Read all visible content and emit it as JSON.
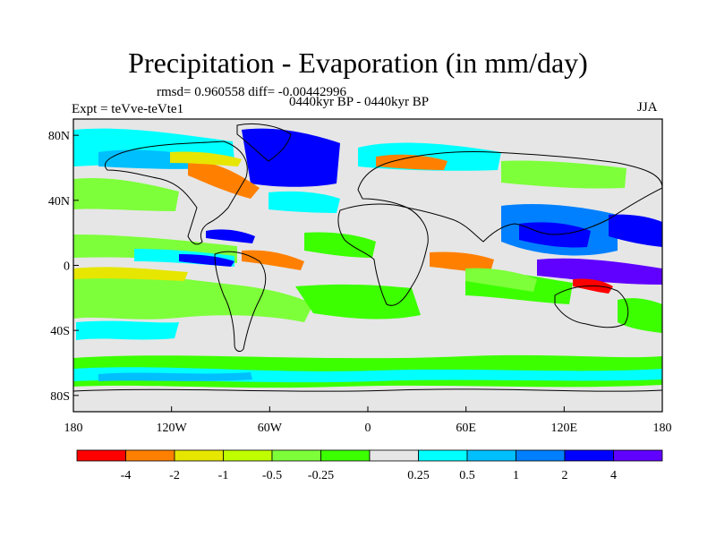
{
  "title": "Precipitation - Evaporation (in mm/day)",
  "stats": "rmsd= 0.960558 diff= -0.00442996",
  "period": "0440kyr BP - 0440kyr BP",
  "experiment": "Expt = teVve-teVte1",
  "season": "JJA",
  "map": {
    "lat_ticks": [
      "80N",
      "40N",
      "0",
      "40S",
      "80S"
    ],
    "lat_values": [
      80,
      40,
      0,
      -40,
      -80
    ],
    "lon_ticks": [
      "180",
      "120W",
      "60W",
      "0",
      "60E",
      "120E",
      "180"
    ],
    "lon_values": [
      -180,
      -120,
      -60,
      0,
      60,
      120,
      180
    ],
    "lat_range": [
      -90,
      90
    ],
    "lon_range": [
      -180,
      180
    ]
  },
  "colorbar": {
    "labels": [
      "-4",
      "-2",
      "-1",
      "-0.5",
      "-0.25",
      "0.25",
      "0.5",
      "1",
      "2",
      "4"
    ],
    "colors": [
      "#ff0000",
      "#ff8000",
      "#e6e600",
      "#bfff00",
      "#7dff3a",
      "#3cff00",
      "#e6e6e6",
      "#00ffff",
      "#00bfff",
      "#0080ff",
      "#0000ff",
      "#6000ff"
    ]
  }
}
